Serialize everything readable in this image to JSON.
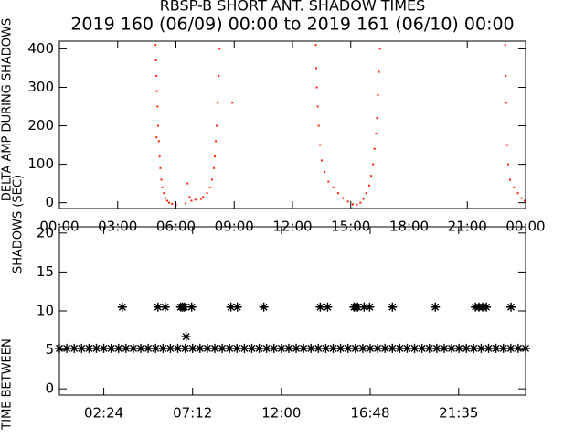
{
  "chart_data": [
    {
      "type": "scatter",
      "title": "RBSP-B SHORT ANT. SHADOW TIMES",
      "subtitle": "2019 160 (06/09) 00:00 to 2019 161 (06/10) 00:00",
      "y_label": "DELTA AMP DURING SHADOWS",
      "color": "#ff2000",
      "marker": "dot",
      "x": [
        4.95,
        4.97,
        5.0,
        5.02,
        5.05,
        5.08,
        5.12,
        5.16,
        5.2,
        5.25,
        5.3,
        5.38,
        5.45,
        5.55,
        5.65,
        5.8,
        6.0,
        5.0,
        6.5,
        6.7,
        6.8,
        7.0,
        7.3,
        7.4,
        7.6,
        7.75,
        7.85,
        7.95,
        8.0,
        8.05,
        8.1,
        8.15,
        8.2,
        8.25,
        6.6,
        8.9,
        13.2,
        13.22,
        13.25,
        13.3,
        13.35,
        13.42,
        13.5,
        13.65,
        13.85,
        14.1,
        14.35,
        14.6,
        14.85,
        15.1,
        15.3,
        15.5,
        15.65,
        15.8,
        15.95,
        16.05,
        16.15,
        16.22,
        16.3,
        16.35,
        16.4,
        16.45,
        16.5,
        22.95,
        22.98,
        23.0,
        23.05,
        23.1,
        23.2,
        23.4,
        23.6,
        23.8,
        23.95
      ],
      "values": [
        410,
        370,
        330,
        290,
        250,
        200,
        160,
        120,
        90,
        60,
        40,
        25,
        12,
        5,
        0,
        -3,
        -5,
        170,
        -2,
        15,
        5,
        8,
        10,
        15,
        25,
        40,
        60,
        90,
        120,
        160,
        200,
        260,
        330,
        400,
        50,
        260,
        410,
        350,
        300,
        250,
        200,
        150,
        110,
        80,
        55,
        40,
        25,
        12,
        3,
        -4,
        -5,
        0,
        10,
        25,
        45,
        70,
        100,
        140,
        180,
        220,
        280,
        340,
        400,
        410,
        330,
        260,
        150,
        100,
        60,
        40,
        25,
        12,
        5
      ],
      "xlim": [
        0,
        24
      ],
      "xticks": [
        {
          "value": 0,
          "label": "00:00"
        },
        {
          "value": 3,
          "label": "03:00"
        },
        {
          "value": 6,
          "label": "06:00"
        },
        {
          "value": 9,
          "label": "09:00"
        },
        {
          "value": 12,
          "label": "12:00"
        },
        {
          "value": 15,
          "label": "15:00"
        },
        {
          "value": 18,
          "label": "18:00"
        },
        {
          "value": 21,
          "label": "21:00"
        },
        {
          "value": 24,
          "label": "00:00"
        }
      ],
      "ylim": [
        -15,
        420
      ],
      "yticks": [
        0,
        100,
        200,
        300,
        400
      ]
    },
    {
      "type": "scatter",
      "y_label": [
        "TIME BETWEEN",
        "SHADOWS (SEC)"
      ],
      "color": "#000000",
      "marker": "star",
      "x": [
        0,
        0.4,
        0.8,
        1.2,
        1.6,
        2.0,
        2.4,
        2.8,
        3.2,
        3.6,
        4.0,
        4.4,
        4.8,
        5.2,
        5.6,
        6.0,
        6.4,
        6.8,
        7.2,
        7.6,
        8.0,
        8.4,
        8.8,
        9.2,
        9.6,
        10.0,
        10.4,
        10.8,
        11.2,
        11.6,
        12.0,
        12.4,
        12.8,
        13.2,
        13.6,
        14.0,
        14.4,
        14.8,
        15.2,
        15.6,
        16.0,
        16.4,
        16.8,
        17.2,
        17.6,
        18.0,
        18.4,
        18.8,
        19.2,
        19.6,
        20.0,
        20.4,
        20.8,
        21.2,
        21.6,
        22.0,
        22.4,
        22.8,
        23.2,
        23.6,
        24.0,
        24.4,
        24.8,
        25.2,
        3.4,
        5.33,
        5.72,
        6.56,
        6.66,
        6.76,
        7.15,
        9.27,
        9.62,
        11.05,
        14.1,
        14.5,
        15.93,
        16.03,
        16.12,
        16.47,
        16.77,
        18.0,
        20.32,
        22.49,
        22.68,
        22.88,
        23.08,
        24.41,
        6.85
      ],
      "values": [
        5.2,
        5.2,
        5.2,
        5.2,
        5.2,
        5.2,
        5.2,
        5.2,
        5.2,
        5.2,
        5.2,
        5.2,
        5.2,
        5.2,
        5.2,
        5.2,
        5.2,
        5.2,
        5.2,
        5.2,
        5.2,
        5.2,
        5.2,
        5.2,
        5.2,
        5.2,
        5.2,
        5.2,
        5.2,
        5.2,
        5.2,
        5.2,
        5.2,
        5.2,
        5.2,
        5.2,
        5.2,
        5.2,
        5.2,
        5.2,
        5.2,
        5.2,
        5.2,
        5.2,
        5.2,
        5.2,
        5.2,
        5.2,
        5.2,
        5.2,
        5.2,
        5.2,
        5.2,
        5.2,
        5.2,
        5.2,
        5.2,
        5.2,
        5.2,
        5.2,
        5.2,
        5.2,
        5.2,
        5.2,
        10.5,
        10.5,
        10.5,
        10.5,
        10.5,
        10.5,
        10.5,
        10.5,
        10.5,
        10.5,
        10.5,
        10.5,
        10.5,
        10.5,
        10.5,
        10.5,
        10.5,
        10.5,
        10.5,
        10.5,
        10.5,
        10.5,
        10.5,
        10.5,
        6.7
      ],
      "xlim": [
        0,
        25.2
      ],
      "xticks": [
        {
          "value": 2.4,
          "label": "02:24"
        },
        {
          "value": 7.2,
          "label": "07:12"
        },
        {
          "value": 12,
          "label": "12:00"
        },
        {
          "value": 16.8,
          "label": "16:48"
        },
        {
          "value": 21.583,
          "label": "21:35"
        }
      ],
      "ylim": [
        -0.8,
        20.8
      ],
      "yticks": [
        0,
        5,
        10,
        15,
        20
      ]
    }
  ]
}
